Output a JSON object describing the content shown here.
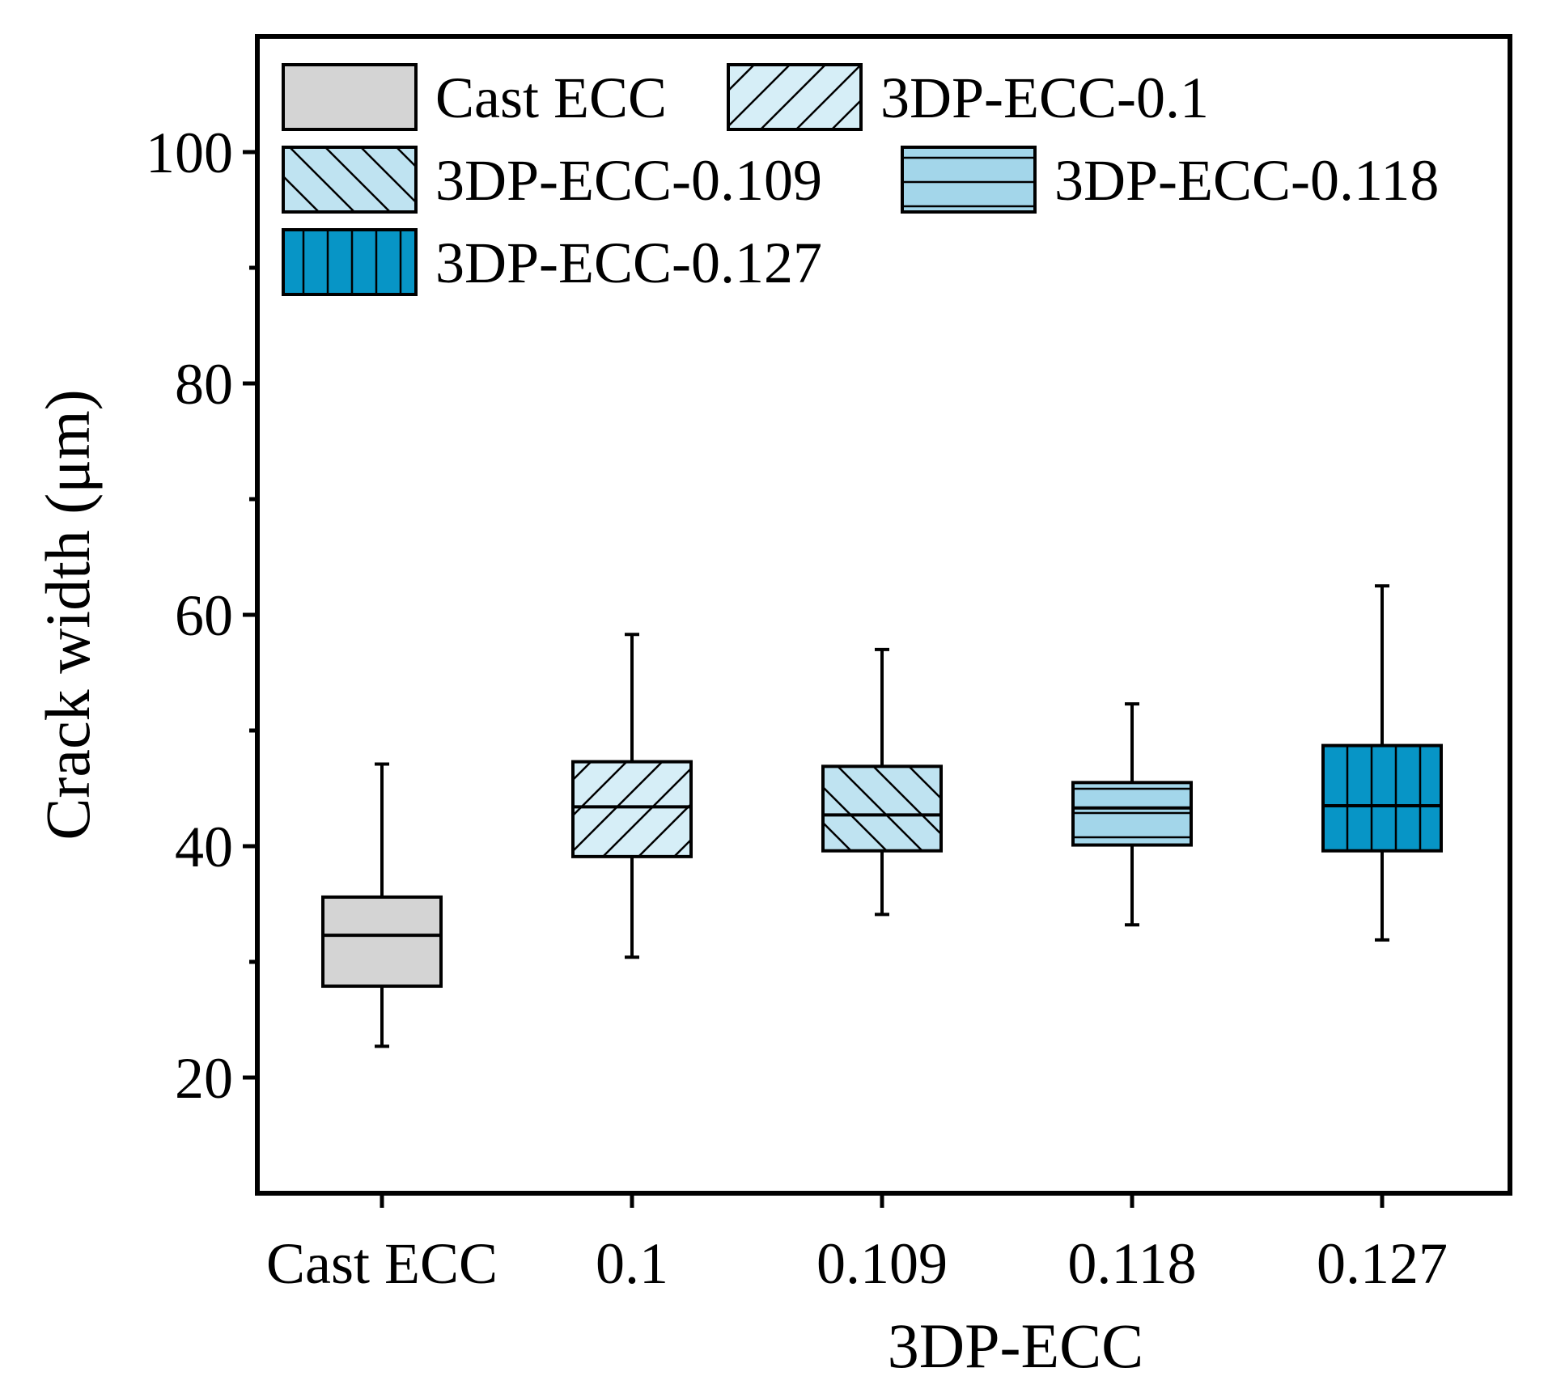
{
  "chart_data": {
    "type": "box",
    "title": "",
    "xlabel": "3DP-ECC",
    "ylabel": "Crack width (μm)",
    "ylim": [
      10,
      110
    ],
    "yticks": [
      20,
      40,
      60,
      80,
      100
    ],
    "categories": [
      "Cast ECC",
      "0.1",
      "0.109",
      "0.118",
      "0.127"
    ],
    "series": [
      {
        "name": "Cast ECC",
        "whisker_low": 22.7,
        "q1": 27.9,
        "median": 32.3,
        "q3": 35.6,
        "whisker_high": 47.1,
        "color": "#d4d4d4",
        "pattern": "none"
      },
      {
        "name": "3DP-ECC-0.1",
        "whisker_low": 30.4,
        "q1": 39.1,
        "median": 43.4,
        "q3": 47.3,
        "whisker_high": 58.3,
        "color": "#d6eef7",
        "pattern": "forward-diagonal"
      },
      {
        "name": "3DP-ECC-0.109",
        "whisker_low": 34.1,
        "q1": 39.6,
        "median": 42.7,
        "q3": 46.9,
        "whisker_high": 57.0,
        "color": "#bfe3f1",
        "pattern": "backward-diagonal"
      },
      {
        "name": "3DP-ECC-0.118",
        "whisker_low": 33.2,
        "q1": 40.1,
        "median": 43.3,
        "q3": 45.5,
        "whisker_high": 52.3,
        "color": "#a3d6ea",
        "pattern": "horizontal"
      },
      {
        "name": "3DP-ECC-0.127",
        "whisker_low": 31.9,
        "q1": 39.6,
        "median": 43.5,
        "q3": 48.7,
        "whisker_high": 62.5,
        "color": "#0795c6",
        "pattern": "vertical"
      }
    ],
    "legend": [
      "Cast ECC",
      "3DP-ECC-0.1",
      "3DP-ECC-0.109",
      "3DP-ECC-0.118",
      "3DP-ECC-0.127"
    ],
    "legend_position": "top-left",
    "grid": false
  }
}
